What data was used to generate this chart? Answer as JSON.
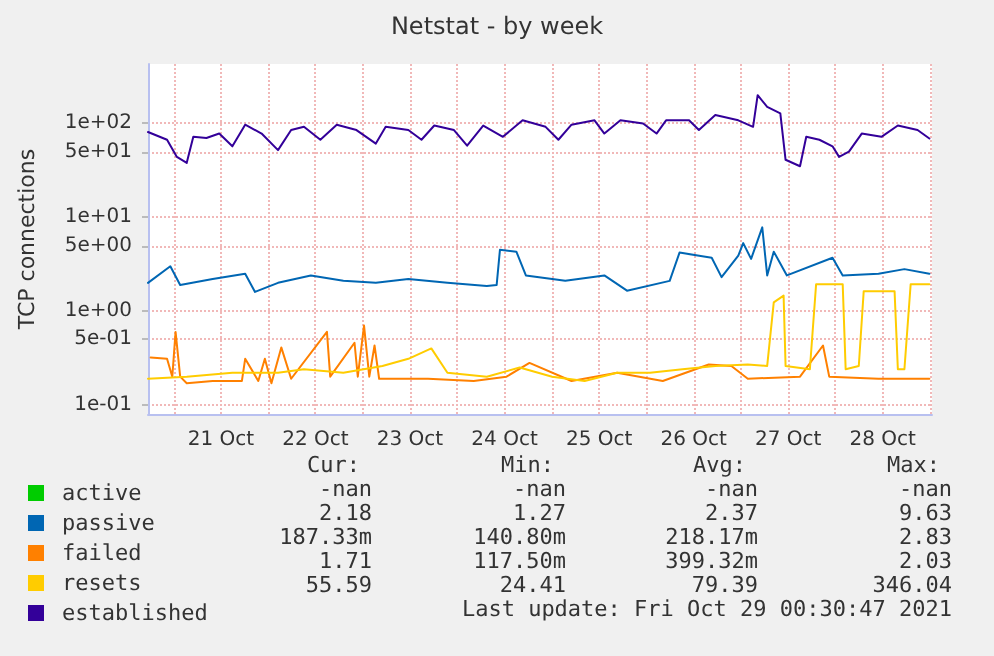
{
  "chart_data": {
    "type": "line",
    "title": "Netstat - by week",
    "ylabel": "TCP connections",
    "log": "y",
    "grid": true,
    "legend": "bottom",
    "marker": "none",
    "line_style": "solid",
    "xlim": [
      "2021-10-20T17:30",
      "2021-10-29T00:30"
    ],
    "xticks": [
      {
        "value": "2021-10-21T00:00",
        "label": null
      },
      {
        "value": "2021-10-21T12:00",
        "label": "21 Oct"
      },
      {
        "value": "2021-10-22T00:00",
        "label": null
      },
      {
        "value": "2021-10-22T12:00",
        "label": "22 Oct"
      },
      {
        "value": "2021-10-23T00:00",
        "label": null
      },
      {
        "value": "2021-10-23T12:00",
        "label": "23 Oct"
      },
      {
        "value": "2021-10-24T00:00",
        "label": null
      },
      {
        "value": "2021-10-24T12:00",
        "label": "24 Oct"
      },
      {
        "value": "2021-10-25T00:00",
        "label": null
      },
      {
        "value": "2021-10-25T12:00",
        "label": "25 Oct"
      },
      {
        "value": "2021-10-26T00:00",
        "label": null
      },
      {
        "value": "2021-10-26T12:00",
        "label": "26 Oct"
      },
      {
        "value": "2021-10-27T00:00",
        "label": null
      },
      {
        "value": "2021-10-27T12:00",
        "label": "27 Oct"
      },
      {
        "value": "2021-10-28T00:00",
        "label": null
      },
      {
        "value": "2021-10-28T12:00",
        "label": "28 Oct"
      },
      {
        "value": "2021-10-29T00:00",
        "label": null
      }
    ],
    "ylim": [
      0.08,
      430
    ],
    "yticks": [
      {
        "value": 0.1,
        "label": "1e-01"
      },
      {
        "value": 0.5,
        "label": "5e-01"
      },
      {
        "value": 1,
        "label": "1e+00"
      },
      {
        "value": 5,
        "label": "5e+00"
      },
      {
        "value": 10,
        "label": "1e+01"
      },
      {
        "value": 50,
        "label": "5e+01"
      },
      {
        "value": 100,
        "label": "1e+02"
      }
    ],
    "series": [
      {
        "name": "active",
        "color": "#00cc00"
      },
      {
        "name": "passive",
        "color": "#0066b3",
        "x": [
          "2021-10-20T17:30",
          "2021-10-20T23:10",
          "2021-10-21T01:40",
          "2021-10-21T09:55",
          "2021-10-21T18:10",
          "2021-10-21T20:40",
          "2021-10-22T02:30",
          "2021-10-22T10:50",
          "2021-10-22T19:05",
          "2021-10-23T03:20",
          "2021-10-23T11:35",
          "2021-10-23T21:30",
          "2021-10-24T07:30",
          "2021-10-24T10:00",
          "2021-10-24T10:50",
          "2021-10-24T15:00",
          "2021-10-24T17:25",
          "2021-10-25T03:25",
          "2021-10-25T13:20",
          "2021-10-25T19:05",
          "2021-10-26T05:55",
          "2021-10-26T08:25",
          "2021-10-26T16:35",
          "2021-10-26T19:05",
          "2021-10-26T23:20",
          "2021-10-27T00:35",
          "2021-10-27T02:35",
          "2021-10-27T05:25",
          "2021-10-27T06:40",
          "2021-10-27T08:20",
          "2021-10-27T11:40",
          "2021-10-27T23:15",
          "2021-10-28T01:50",
          "2021-10-28T10:55",
          "2021-10-28T17:30",
          "2021-10-28T23:50"
        ],
        "values": [
          2.0,
          3.0,
          1.9,
          2.2,
          2.5,
          1.6,
          2.0,
          2.4,
          2.1,
          2.0,
          2.2,
          2.0,
          1.85,
          1.9,
          4.5,
          4.3,
          2.4,
          2.1,
          2.4,
          1.65,
          2.1,
          4.2,
          3.7,
          2.3,
          3.9,
          5.3,
          3.6,
          7.8,
          2.4,
          4.3,
          2.4,
          3.7,
          2.4,
          2.5,
          2.8,
          2.5
        ]
      },
      {
        "name": "failed",
        "color": "#ff8000",
        "x": [
          "2021-10-20T18:10",
          "2021-10-20T22:20",
          "2021-10-20T23:40",
          "2021-10-21T00:30",
          "2021-10-21T01:40",
          "2021-10-21T03:20",
          "2021-10-21T09:55",
          "2021-10-21T17:20",
          "2021-10-21T18:10",
          "2021-10-21T21:30",
          "2021-10-21T23:10",
          "2021-10-22T00:50",
          "2021-10-22T03:20",
          "2021-10-22T05:50",
          "2021-10-22T14:55",
          "2021-10-22T15:45",
          "2021-10-22T21:55",
          "2021-10-22T22:45",
          "2021-10-23T00:20",
          "2021-10-23T01:40",
          "2021-10-23T03:00",
          "2021-10-23T04:10",
          "2021-10-23T16:35",
          "2021-10-24T04:10",
          "2021-10-24T12:30",
          "2021-10-24T18:20",
          "2021-10-25T05:00",
          "2021-10-25T16:35",
          "2021-10-26T04:10",
          "2021-10-26T15:50",
          "2021-10-26T21:35",
          "2021-10-27T01:45",
          "2021-10-27T15:00",
          "2021-10-27T20:50",
          "2021-10-27T22:25",
          "2021-10-28T10:55",
          "2021-10-28T23:50"
        ],
        "values": [
          0.32,
          0.31,
          0.2,
          0.6,
          0.2,
          0.17,
          0.18,
          0.18,
          0.31,
          0.18,
          0.31,
          0.17,
          0.41,
          0.19,
          0.6,
          0.2,
          0.46,
          0.2,
          0.7,
          0.2,
          0.43,
          0.19,
          0.19,
          0.18,
          0.2,
          0.28,
          0.18,
          0.22,
          0.18,
          0.27,
          0.26,
          0.19,
          0.2,
          0.43,
          0.2,
          0.19,
          0.19
        ]
      },
      {
        "name": "resets",
        "color": "#ffcc00",
        "x": [
          "2021-10-20T17:30",
          "2021-10-21T03:20",
          "2021-10-21T14:55",
          "2021-10-22T02:30",
          "2021-10-22T09:05",
          "2021-10-22T19:05",
          "2021-10-23T05:00",
          "2021-10-23T11:35",
          "2021-10-23T17:25",
          "2021-10-23T21:30",
          "2021-10-24T07:30",
          "2021-10-24T15:50",
          "2021-10-25T00:05",
          "2021-10-25T08:20",
          "2021-10-25T16:35",
          "2021-10-26T00:55",
          "2021-10-26T09:10",
          "2021-10-26T17:30",
          "2021-10-27T01:45",
          "2021-10-27T06:40",
          "2021-10-27T08:20",
          "2021-10-27T10:50",
          "2021-10-27T11:20",
          "2021-10-27T17:30",
          "2021-10-27T19:05",
          "2021-10-28T01:50",
          "2021-10-28T02:35",
          "2021-10-28T05:55",
          "2021-10-28T07:10",
          "2021-10-28T15:00",
          "2021-10-28T15:50",
          "2021-10-28T17:30",
          "2021-10-28T19:05",
          "2021-10-28T23:50"
        ],
        "values": [
          0.19,
          0.2,
          0.22,
          0.22,
          0.24,
          0.22,
          0.26,
          0.31,
          0.4,
          0.22,
          0.2,
          0.25,
          0.2,
          0.18,
          0.22,
          0.22,
          0.24,
          0.26,
          0.27,
          0.26,
          1.24,
          1.46,
          0.26,
          0.24,
          1.93,
          1.93,
          0.24,
          0.26,
          1.63,
          1.63,
          0.24,
          0.24,
          1.93,
          1.93
        ]
      },
      {
        "name": "established",
        "color": "#330099",
        "x": [
          "2021-10-20T17:30",
          "2021-10-20T22:20",
          "2021-10-21T00:50",
          "2021-10-21T03:20",
          "2021-10-21T05:00",
          "2021-10-21T08:20",
          "2021-10-21T11:35",
          "2021-10-21T14:55",
          "2021-10-21T18:10",
          "2021-10-21T22:20",
          "2021-10-22T02:30",
          "2021-10-22T05:50",
          "2021-10-22T09:05",
          "2021-10-22T13:15",
          "2021-10-22T17:25",
          "2021-10-22T22:25",
          "2021-10-23T03:20",
          "2021-10-23T05:50",
          "2021-10-23T11:35",
          "2021-10-23T14:55",
          "2021-10-23T18:10",
          "2021-10-23T23:10",
          "2021-10-24T02:30",
          "2021-10-24T06:35",
          "2021-10-24T11:35",
          "2021-10-24T16:35",
          "2021-10-24T22:25",
          "2021-10-25T01:40",
          "2021-10-25T05:00",
          "2021-10-25T10:50",
          "2021-10-25T13:20",
          "2021-10-25T17:25",
          "2021-10-25T23:10",
          "2021-10-26T02:35",
          "2021-10-26T05:00",
          "2021-10-26T10:50",
          "2021-10-26T13:20",
          "2021-10-26T17:30",
          "2021-10-26T23:20",
          "2021-10-27T03:05",
          "2021-10-27T04:15",
          "2021-10-27T06:40",
          "2021-10-27T10:00",
          "2021-10-27T11:20",
          "2021-10-27T15:00",
          "2021-10-27T16:35",
          "2021-10-27T19:55",
          "2021-10-27T23:15",
          "2021-10-28T00:55",
          "2021-10-28T03:25",
          "2021-10-28T06:40",
          "2021-10-28T11:40",
          "2021-10-28T15:50",
          "2021-10-28T20:50",
          "2021-10-28T23:50"
        ],
        "values": [
          81,
          67,
          44,
          38,
          72,
          70,
          78,
          57,
          97,
          78,
          52,
          85,
          92,
          67,
          97,
          85,
          61,
          92,
          85,
          67,
          95,
          85,
          58,
          95,
          72,
          108,
          92,
          67,
          97,
          108,
          78,
          108,
          100,
          78,
          108,
          108,
          85,
          123,
          108,
          92,
          200,
          150,
          128,
          41,
          35,
          72,
          67,
          57,
          44,
          50,
          78,
          72,
          95,
          85,
          69
        ]
      }
    ],
    "annotations": [
      "Cur:",
      "Min:",
      "Avg:",
      "Max:",
      "-nan",
      "-nan",
      "-nan",
      "-nan",
      "2.18",
      "1.27",
      "2.37",
      "9.63",
      "187.33m",
      "140.80m",
      "218.17m",
      "2.83",
      "1.71",
      "117.50m",
      "399.32m",
      "2.03",
      "55.59",
      "24.41",
      "79.39",
      "346.04",
      "Last update: Fri Oct 29 00:30:47 2021"
    ]
  }
}
